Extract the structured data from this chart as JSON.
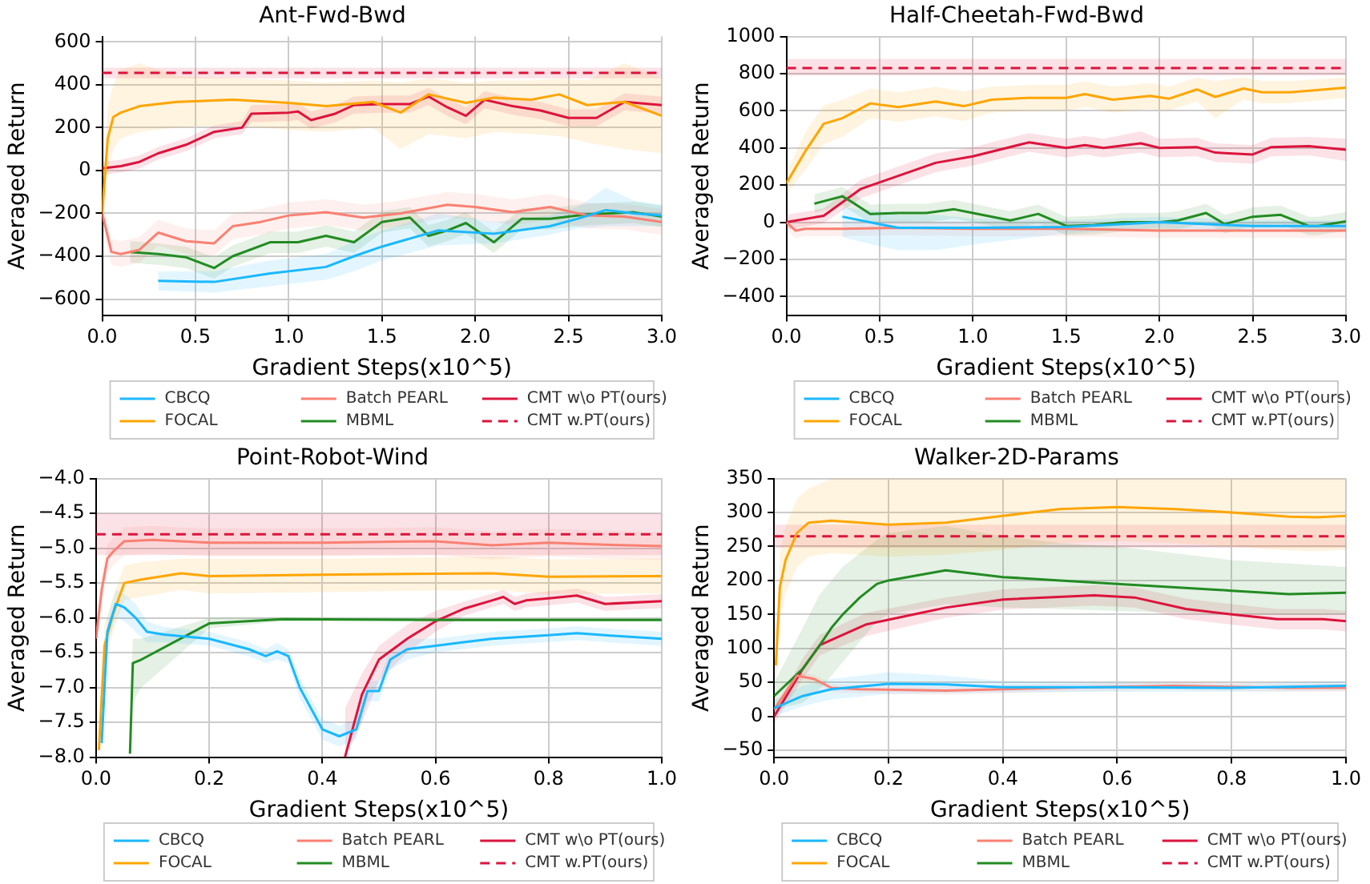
{
  "chart_data": [
    {
      "type": "line",
      "title": "Ant-Fwd-Bwd",
      "xlabel": "Gradient Steps(x10^5)",
      "ylabel": "Averaged Return",
      "xlim": [
        0,
        3
      ],
      "ylim": [
        -675,
        625
      ],
      "xticks": [
        {
          "value": 0,
          "label": "0.0"
        },
        {
          "value": 0.5,
          "label": "0.5"
        },
        {
          "value": 1,
          "label": "1.0"
        },
        {
          "value": 1.5,
          "label": "1.5"
        },
        {
          "value": 2,
          "label": "2.0"
        },
        {
          "value": 2.5,
          "label": "2.5"
        },
        {
          "value": 3,
          "label": "3.0"
        }
      ],
      "yticks": [
        {
          "value": -600,
          "label": "−600"
        },
        {
          "value": -400,
          "label": "−400"
        },
        {
          "value": -200,
          "label": "−200"
        },
        0,
        200,
        400,
        600
      ],
      "grid": true,
      "legend": "bottom",
      "marker": "none",
      "series": [
        {
          "name": "CBCQ",
          "color": "#1ab8ff",
          "x": [
            0.3,
            0.6,
            0.9,
            1.2,
            1.35,
            1.5,
            1.8,
            2.1,
            2.4,
            2.55,
            2.7,
            2.85,
            3.0
          ],
          "values": [
            -515,
            -520,
            -480,
            -450,
            -400,
            -355,
            -280,
            -295,
            -260,
            -225,
            -185,
            -200,
            -210
          ],
          "lower": [
            -560,
            -570,
            -540,
            -510,
            -470,
            -420,
            -350,
            -340,
            -300,
            -270,
            -260,
            -260,
            -260
          ],
          "upper": [
            -470,
            -470,
            -420,
            -390,
            -330,
            -280,
            -200,
            -240,
            -210,
            -170,
            -80,
            -140,
            -160
          ]
        },
        {
          "name": "FOCAL",
          "color": "#ffa500",
          "x": [
            0,
            0.03,
            0.06,
            0.1,
            0.2,
            0.4,
            0.7,
            1.0,
            1.2,
            1.45,
            1.6,
            1.75,
            1.95,
            2.1,
            2.3,
            2.45,
            2.6,
            2.8,
            3.0
          ],
          "values": [
            -200,
            150,
            250,
            270,
            300,
            320,
            330,
            315,
            300,
            320,
            270,
            355,
            315,
            340,
            330,
            355,
            305,
            320,
            255
          ],
          "lower": [
            -300,
            0,
            100,
            150,
            180,
            200,
            210,
            190,
            180,
            200,
            100,
            170,
            150,
            180,
            170,
            160,
            130,
            100,
            80
          ],
          "upper": [
            -100,
            300,
            400,
            470,
            500,
            440,
            430,
            420,
            410,
            420,
            410,
            430,
            410,
            420,
            420,
            430,
            420,
            500,
            430
          ]
        },
        {
          "name": "Batch PEARL",
          "color": "#fa8072",
          "x": [
            0,
            0.05,
            0.1,
            0.2,
            0.3,
            0.45,
            0.6,
            0.7,
            0.85,
            1.0,
            1.2,
            1.4,
            1.6,
            1.85,
            2.0,
            2.2,
            2.4,
            2.6,
            2.8,
            3.0
          ],
          "values": [
            -200,
            -380,
            -390,
            -370,
            -290,
            -330,
            -340,
            -260,
            -240,
            -210,
            -195,
            -220,
            -200,
            -160,
            -170,
            -195,
            -170,
            -210,
            -215,
            -240
          ],
          "lower": [
            -260,
            -440,
            -450,
            -430,
            -350,
            -390,
            -400,
            -320,
            -300,
            -270,
            -255,
            -280,
            -260,
            -220,
            -230,
            -255,
            -230,
            -270,
            -275,
            -300
          ],
          "upper": [
            -140,
            -320,
            -330,
            -310,
            -230,
            -270,
            -280,
            -200,
            -180,
            -150,
            -135,
            -160,
            -140,
            -100,
            -110,
            -135,
            -110,
            -150,
            -155,
            -180
          ]
        },
        {
          "name": "MBML",
          "color": "#228b22",
          "x": [
            0.15,
            0.3,
            0.45,
            0.6,
            0.7,
            0.9,
            1.05,
            1.2,
            1.35,
            1.5,
            1.65,
            1.75,
            1.85,
            1.95,
            2.1,
            2.25,
            2.4,
            2.6,
            2.85,
            3.0
          ],
          "values": [
            -380,
            -390,
            -405,
            -455,
            -400,
            -335,
            -335,
            -305,
            -335,
            -240,
            -220,
            -305,
            -280,
            -245,
            -335,
            -225,
            -225,
            -205,
            -195,
            -215
          ],
          "lower": [
            -430,
            -440,
            -455,
            -505,
            -450,
            -385,
            -385,
            -355,
            -385,
            -290,
            -270,
            -355,
            -330,
            -295,
            -385,
            -275,
            -275,
            -255,
            -245,
            -265
          ],
          "upper": [
            -330,
            -340,
            -355,
            -405,
            -350,
            -285,
            -285,
            -255,
            -285,
            -190,
            -170,
            -255,
            -230,
            -195,
            -285,
            -175,
            -175,
            -155,
            -145,
            -165
          ]
        },
        {
          "name": "CMT w\\o PT(ours)",
          "color": "#dc143c",
          "x": [
            0,
            0.1,
            0.2,
            0.3,
            0.45,
            0.6,
            0.75,
            0.8,
            1.0,
            1.05,
            1.12,
            1.25,
            1.35,
            1.5,
            1.65,
            1.75,
            1.85,
            1.95,
            2.05,
            2.2,
            2.35,
            2.5,
            2.65,
            2.8,
            3.0
          ],
          "values": [
            10,
            20,
            40,
            80,
            120,
            180,
            200,
            265,
            270,
            275,
            235,
            265,
            305,
            310,
            310,
            345,
            295,
            255,
            330,
            300,
            280,
            245,
            245,
            320,
            305
          ],
          "lower": [
            -20,
            -10,
            10,
            50,
            90,
            150,
            170,
            225,
            230,
            235,
            195,
            225,
            265,
            270,
            270,
            305,
            255,
            215,
            290,
            260,
            240,
            205,
            205,
            280,
            265
          ],
          "upper": [
            40,
            50,
            70,
            110,
            150,
            210,
            230,
            305,
            310,
            315,
            275,
            305,
            345,
            350,
            350,
            385,
            335,
            295,
            370,
            340,
            320,
            285,
            285,
            360,
            345
          ]
        },
        {
          "name": "CMT w.PT(ours)",
          "color": "#dc143c",
          "line_style": "dashed",
          "x": [
            0,
            3
          ],
          "values": [
            455,
            455
          ],
          "lower": [
            430,
            430
          ],
          "upper": [
            480,
            480
          ]
        }
      ]
    },
    {
      "type": "line",
      "title": "Half-Cheetah-Fwd-Bwd",
      "xlabel": "Gradient Steps(x10^5)",
      "ylabel": "Averaged Return",
      "xlim": [
        0,
        3
      ],
      "ylim": [
        -500,
        1000
      ],
      "xticks": [
        {
          "value": 0,
          "label": "0.0"
        },
        {
          "value": 0.5,
          "label": "0.5"
        },
        {
          "value": 1,
          "label": "1.0"
        },
        {
          "value": 1.5,
          "label": "1.5"
        },
        {
          "value": 2,
          "label": "2.0"
        },
        {
          "value": 2.5,
          "label": "2.5"
        },
        {
          "value": 3,
          "label": "3.0"
        }
      ],
      "yticks": [
        {
          "value": -400,
          "label": "−400"
        },
        {
          "value": -200,
          "label": "−200"
        },
        0,
        200,
        400,
        600,
        800,
        1000
      ],
      "grid": true,
      "legend": "bottom",
      "marker": "none",
      "series": [
        {
          "name": "CBCQ",
          "color": "#1ab8ff",
          "x": [
            0.3,
            0.5,
            0.6,
            0.8,
            1.0,
            1.5,
            2.0,
            2.5,
            3.0
          ],
          "values": [
            30,
            -10,
            -30,
            -30,
            -30,
            -25,
            0,
            -20,
            -20
          ],
          "lower": [
            -80,
            -130,
            -150,
            -150,
            -120,
            -60,
            -30,
            -50,
            -50
          ],
          "upper": [
            80,
            60,
            40,
            40,
            20,
            10,
            30,
            10,
            10
          ]
        },
        {
          "name": "FOCAL",
          "color": "#ffa500",
          "x": [
            0,
            0.1,
            0.2,
            0.3,
            0.45,
            0.6,
            0.8,
            0.95,
            1.1,
            1.3,
            1.5,
            1.6,
            1.75,
            1.95,
            2.05,
            2.2,
            2.3,
            2.45,
            2.55,
            2.7,
            3.0
          ],
          "values": [
            210,
            380,
            530,
            560,
            640,
            620,
            650,
            625,
            660,
            670,
            670,
            690,
            660,
            680,
            665,
            715,
            675,
            720,
            700,
            700,
            725
          ],
          "lower": [
            150,
            280,
            420,
            460,
            560,
            540,
            570,
            545,
            590,
            600,
            600,
            620,
            590,
            610,
            600,
            650,
            560,
            660,
            640,
            640,
            670
          ],
          "upper": [
            270,
            480,
            630,
            660,
            720,
            700,
            730,
            705,
            730,
            740,
            740,
            760,
            730,
            750,
            730,
            780,
            760,
            780,
            760,
            760,
            780
          ]
        },
        {
          "name": "Batch PEARL",
          "color": "#fa8072",
          "x": [
            0,
            0.05,
            0.1,
            0.3,
            0.6,
            1.0,
            1.5,
            2.0,
            2.5,
            3.0
          ],
          "values": [
            0,
            -45,
            -35,
            -35,
            -30,
            -35,
            -35,
            -45,
            -45,
            -45
          ],
          "lower": [
            -40,
            -85,
            -75,
            -75,
            -70,
            -75,
            -75,
            -85,
            -85,
            -85
          ],
          "upper": [
            40,
            -5,
            5,
            5,
            10,
            5,
            5,
            -5,
            -5,
            -5
          ]
        },
        {
          "name": "MBML",
          "color": "#228b22",
          "x": [
            0.15,
            0.3,
            0.35,
            0.45,
            0.6,
            0.75,
            0.9,
            1.0,
            1.2,
            1.35,
            1.5,
            1.65,
            1.8,
            2.0,
            2.1,
            2.25,
            2.35,
            2.5,
            2.65,
            2.8,
            2.85,
            3.0
          ],
          "values": [
            100,
            140,
            110,
            45,
            50,
            50,
            70,
            50,
            10,
            45,
            -20,
            -15,
            0,
            0,
            10,
            50,
            -10,
            30,
            40,
            -20,
            -20,
            5
          ],
          "lower": [
            50,
            90,
            60,
            -5,
            0,
            0,
            20,
            0,
            -40,
            -5,
            -70,
            -65,
            -50,
            -50,
            -40,
            0,
            -60,
            -20,
            -10,
            -70,
            -70,
            -45
          ],
          "upper": [
            150,
            190,
            160,
            95,
            100,
            100,
            120,
            100,
            60,
            95,
            30,
            35,
            50,
            50,
            60,
            100,
            40,
            80,
            90,
            30,
            30,
            55
          ]
        },
        {
          "name": "CMT w\\o PT(ours)",
          "color": "#dc143c",
          "x": [
            0,
            0.2,
            0.4,
            0.6,
            0.8,
            1.0,
            1.3,
            1.5,
            1.6,
            1.7,
            1.9,
            2.0,
            2.2,
            2.3,
            2.5,
            2.6,
            2.8,
            3.0
          ],
          "values": [
            0,
            35,
            180,
            250,
            320,
            355,
            430,
            400,
            415,
            400,
            425,
            400,
            405,
            375,
            365,
            405,
            410,
            390
          ],
          "lower": [
            -40,
            -5,
            130,
            200,
            270,
            305,
            380,
            350,
            365,
            350,
            375,
            350,
            355,
            325,
            315,
            355,
            360,
            330
          ],
          "upper": [
            40,
            75,
            230,
            300,
            370,
            405,
            480,
            450,
            465,
            450,
            490,
            450,
            455,
            425,
            415,
            455,
            460,
            450
          ]
        },
        {
          "name": "CMT w.PT(ours)",
          "color": "#dc143c",
          "line_style": "dashed",
          "x": [
            0,
            3
          ],
          "values": [
            830,
            830
          ],
          "lower": [
            790,
            790
          ],
          "upper": [
            880,
            880
          ]
        }
      ]
    },
    {
      "type": "line",
      "title": "Point-Robot-Wind",
      "xlabel": "Gradient Steps(x10^5)",
      "ylabel": "Averaged Return",
      "xlim": [
        0,
        1
      ],
      "ylim": [
        -8,
        -4
      ],
      "xticks": [
        {
          "value": 0,
          "label": "0.0"
        },
        {
          "value": 0.2,
          "label": "0.2"
        },
        {
          "value": 0.4,
          "label": "0.4"
        },
        {
          "value": 0.6,
          "label": "0.6"
        },
        {
          "value": 0.8,
          "label": "0.8"
        },
        {
          "value": 1,
          "label": "1.0"
        }
      ],
      "yticks": [
        {
          "value": -8,
          "label": "−8.0"
        },
        {
          "value": -7.5,
          "label": "−7.5"
        },
        {
          "value": -7,
          "label": "−7.0"
        },
        {
          "value": -6.5,
          "label": "−6.5"
        },
        {
          "value": -6,
          "label": "−6.0"
        },
        {
          "value": -5.5,
          "label": "−5.5"
        },
        {
          "value": -5,
          "label": "−5.0"
        },
        {
          "value": -4.5,
          "label": "−4.5"
        },
        {
          "value": -4,
          "label": "−4.0"
        }
      ],
      "grid": true,
      "legend": "bottom",
      "marker": "none",
      "series": [
        {
          "name": "CBCQ",
          "color": "#1ab8ff",
          "x": [
            0.01,
            0.02,
            0.035,
            0.05,
            0.07,
            0.09,
            0.12,
            0.2,
            0.27,
            0.3,
            0.32,
            0.34,
            0.36,
            0.4,
            0.43,
            0.46,
            0.48,
            0.5,
            0.52,
            0.55,
            0.6,
            0.65,
            0.7,
            0.8,
            0.85,
            0.9,
            1.0
          ],
          "values": [
            -7.8,
            -6.2,
            -5.8,
            -5.85,
            -6.0,
            -6.2,
            -6.24,
            -6.3,
            -6.45,
            -6.55,
            -6.48,
            -6.55,
            -7.0,
            -7.6,
            -7.7,
            -7.6,
            -7.05,
            -7.05,
            -6.6,
            -6.45,
            -6.4,
            -6.35,
            -6.3,
            -6.25,
            -6.22,
            -6.25,
            -6.3
          ],
          "lower": [
            -7.9,
            -6.4,
            -6.0,
            -6.05,
            -6.2,
            -6.35,
            -6.35,
            -6.4,
            -6.55,
            -6.65,
            -6.6,
            -6.65,
            -7.15,
            -7.75,
            -7.85,
            -7.75,
            -7.2,
            -7.2,
            -6.75,
            -6.6,
            -6.5,
            -6.45,
            -6.4,
            -6.35,
            -6.32,
            -6.35,
            -6.4
          ],
          "upper": [
            -7.7,
            -6.0,
            -5.6,
            -5.65,
            -5.8,
            -6.05,
            -6.13,
            -6.2,
            -6.35,
            -6.45,
            -6.36,
            -6.45,
            -6.85,
            -7.45,
            -7.55,
            -7.45,
            -6.9,
            -6.9,
            -6.45,
            -6.3,
            -6.3,
            -6.25,
            -6.2,
            -6.15,
            -6.12,
            -6.15,
            -6.2
          ]
        },
        {
          "name": "FOCAL",
          "color": "#ffa500",
          "x": [
            0.005,
            0.015,
            0.03,
            0.05,
            0.08,
            0.15,
            0.2,
            0.4,
            0.7,
            0.8,
            1.0
          ],
          "values": [
            -7.9,
            -6.4,
            -5.95,
            -5.5,
            -5.45,
            -5.36,
            -5.4,
            -5.38,
            -5.36,
            -5.41,
            -5.4
          ],
          "lower": [
            -8,
            -6.7,
            -6.2,
            -5.75,
            -5.7,
            -5.6,
            -5.65,
            -5.63,
            -5.6,
            -5.66,
            -5.65
          ],
          "upper": [
            -7.6,
            -6.1,
            -5.7,
            -5.25,
            -5.2,
            -5.15,
            -5.15,
            -5.15,
            -5.12,
            -5.16,
            -5.15
          ]
        },
        {
          "name": "Batch PEARL",
          "color": "#fa8072",
          "x": [
            0,
            0.01,
            0.02,
            0.03,
            0.05,
            0.1,
            0.2,
            0.4,
            0.6,
            0.7,
            0.8,
            0.9,
            1.0
          ],
          "values": [
            -6.3,
            -5.6,
            -5.15,
            -5.05,
            -4.9,
            -4.88,
            -4.92,
            -4.92,
            -4.9,
            -4.96,
            -4.92,
            -4.95,
            -4.97
          ],
          "lower": [
            -6.5,
            -5.8,
            -5.35,
            -5.25,
            -5.1,
            -5.08,
            -5.12,
            -5.12,
            -5.1,
            -5.16,
            -5.12,
            -5.15,
            -5.17
          ],
          "upper": [
            -6.1,
            -5.4,
            -4.95,
            -4.85,
            -4.7,
            -4.68,
            -4.72,
            -4.72,
            -4.7,
            -4.76,
            -4.72,
            -4.75,
            -4.77
          ]
        },
        {
          "name": "MBML",
          "color": "#228b22",
          "x": [
            0.06,
            0.065,
            0.08,
            0.2,
            0.33,
            0.6,
            1.0
          ],
          "values": [
            -7.95,
            -6.65,
            -6.6,
            -6.08,
            -6.02,
            -6.03,
            -6.03
          ],
          "lower": [
            -8,
            -7.2,
            -7.0,
            -6.15,
            -6.05,
            -6.05,
            -6.05
          ],
          "upper": [
            -7.6,
            -6.3,
            -6.3,
            -6.0,
            -5.99,
            -6.01,
            -6.01
          ]
        },
        {
          "name": "CMT w\\o PT(ours)",
          "color": "#dc143c",
          "x": [
            0.44,
            0.47,
            0.5,
            0.55,
            0.6,
            0.65,
            0.7,
            0.72,
            0.74,
            0.76,
            0.8,
            0.85,
            0.9,
            1.0
          ],
          "values": [
            -8,
            -7.1,
            -6.6,
            -6.3,
            -6.05,
            -5.87,
            -5.75,
            -5.7,
            -5.8,
            -5.75,
            -5.72,
            -5.68,
            -5.8,
            -5.76
          ],
          "lower": [
            -8,
            -7.5,
            -6.9,
            -6.5,
            -6.2,
            -5.97,
            -5.85,
            -5.8,
            -5.9,
            -5.85,
            -5.82,
            -5.78,
            -5.9,
            -5.86
          ],
          "upper": [
            -7.3,
            -6.8,
            -6.4,
            -6.1,
            -5.9,
            -5.77,
            -5.65,
            -5.6,
            -5.7,
            -5.65,
            -5.62,
            -5.58,
            -5.7,
            -5.66
          ]
        },
        {
          "name": "CMT w.PT(ours)",
          "color": "#dc143c",
          "line_style": "dashed",
          "x": [
            0,
            1
          ],
          "values": [
            -4.8,
            -4.8
          ],
          "lower": [
            -5.1,
            -5.1
          ],
          "upper": [
            -4.5,
            -4.5
          ]
        }
      ]
    },
    {
      "type": "line",
      "title": "Walker-2D-Params",
      "xlabel": "Gradient Steps(x10^5)",
      "ylabel": "Averaged Return",
      "xlim": [
        0,
        1
      ],
      "ylim": [
        -60,
        350
      ],
      "xticks": [
        {
          "value": 0,
          "label": "0.0"
        },
        {
          "value": 0.2,
          "label": "0.2"
        },
        {
          "value": 0.4,
          "label": "0.4"
        },
        {
          "value": 0.6,
          "label": "0.6"
        },
        {
          "value": 0.8,
          "label": "0.8"
        },
        {
          "value": 1,
          "label": "1.0"
        }
      ],
      "yticks": [
        {
          "value": -50,
          "label": "−50"
        },
        0,
        50,
        100,
        150,
        200,
        250,
        300,
        350
      ],
      "grid": true,
      "legend": "bottom",
      "marker": "none",
      "series": [
        {
          "name": "CBCQ",
          "color": "#1ab8ff",
          "x": [
            0,
            0.05,
            0.1,
            0.2,
            0.3,
            0.4,
            0.6,
            0.8,
            1.0
          ],
          "values": [
            12,
            30,
            40,
            48,
            47,
            43,
            43,
            42,
            45
          ],
          "lower": [
            0,
            15,
            25,
            33,
            34,
            35,
            36,
            36,
            38
          ],
          "upper": [
            24,
            45,
            55,
            65,
            60,
            52,
            50,
            48,
            52
          ]
        },
        {
          "name": "FOCAL",
          "color": "#ffa500",
          "x": [
            0.003,
            0.01,
            0.02,
            0.04,
            0.06,
            0.1,
            0.2,
            0.3,
            0.4,
            0.5,
            0.6,
            0.7,
            0.8,
            0.9,
            0.95,
            1.0
          ],
          "values": [
            75,
            190,
            230,
            270,
            285,
            288,
            282,
            285,
            295,
            305,
            308,
            305,
            300,
            294,
            293,
            295
          ],
          "lower": [
            40,
            140,
            180,
            220,
            235,
            240,
            235,
            238,
            245,
            255,
            258,
            255,
            250,
            244,
            243,
            245
          ],
          "upper": [
            110,
            240,
            280,
            320,
            335,
            350,
            350,
            350,
            350,
            350,
            350,
            350,
            350,
            350,
            350,
            350
          ]
        },
        {
          "name": "Batch PEARL",
          "color": "#fa8072",
          "x": [
            0,
            0.04,
            0.07,
            0.1,
            0.15,
            0.3,
            0.5,
            0.7,
            0.9,
            1.0
          ],
          "values": [
            10,
            60,
            55,
            42,
            40,
            38,
            42,
            45,
            42,
            42
          ],
          "lower": [
            4,
            54,
            49,
            36,
            34,
            32,
            36,
            39,
            36,
            36
          ],
          "upper": [
            16,
            66,
            61,
            48,
            46,
            44,
            48,
            51,
            48,
            48
          ]
        },
        {
          "name": "MBML",
          "color": "#228b22",
          "x": [
            0,
            0.05,
            0.08,
            0.1,
            0.12,
            0.15,
            0.18,
            0.2,
            0.3,
            0.4,
            0.5,
            0.6,
            0.8,
            0.9,
            1.0
          ],
          "values": [
            30,
            70,
            105,
            130,
            150,
            175,
            195,
            200,
            215,
            205,
            200,
            195,
            185,
            180,
            182
          ],
          "lower": [
            10,
            20,
            40,
            60,
            80,
            110,
            140,
            150,
            165,
            160,
            158,
            155,
            150,
            150,
            150
          ],
          "upper": [
            50,
            130,
            180,
            200,
            220,
            240,
            260,
            270,
            280,
            265,
            255,
            250,
            230,
            225,
            220
          ]
        },
        {
          "name": "CMT w\\o PT(ours)",
          "color": "#dc143c",
          "x": [
            0,
            0.05,
            0.08,
            0.16,
            0.3,
            0.4,
            0.56,
            0.63,
            0.72,
            0.8,
            0.88,
            0.96,
            1.0
          ],
          "values": [
            0,
            70,
            105,
            135,
            160,
            172,
            178,
            175,
            158,
            150,
            143,
            143,
            140
          ],
          "lower": [
            -10,
            55,
            90,
            118,
            145,
            157,
            163,
            160,
            143,
            135,
            128,
            128,
            125
          ],
          "upper": [
            10,
            85,
            120,
            152,
            175,
            187,
            193,
            190,
            173,
            165,
            158,
            158,
            155
          ]
        },
        {
          "name": "CMT w.PT(ours)",
          "color": "#dc143c",
          "line_style": "dashed",
          "x": [
            0,
            1
          ],
          "values": [
            265,
            265
          ],
          "lower": [
            248,
            248
          ],
          "upper": [
            282,
            282
          ]
        }
      ]
    }
  ]
}
